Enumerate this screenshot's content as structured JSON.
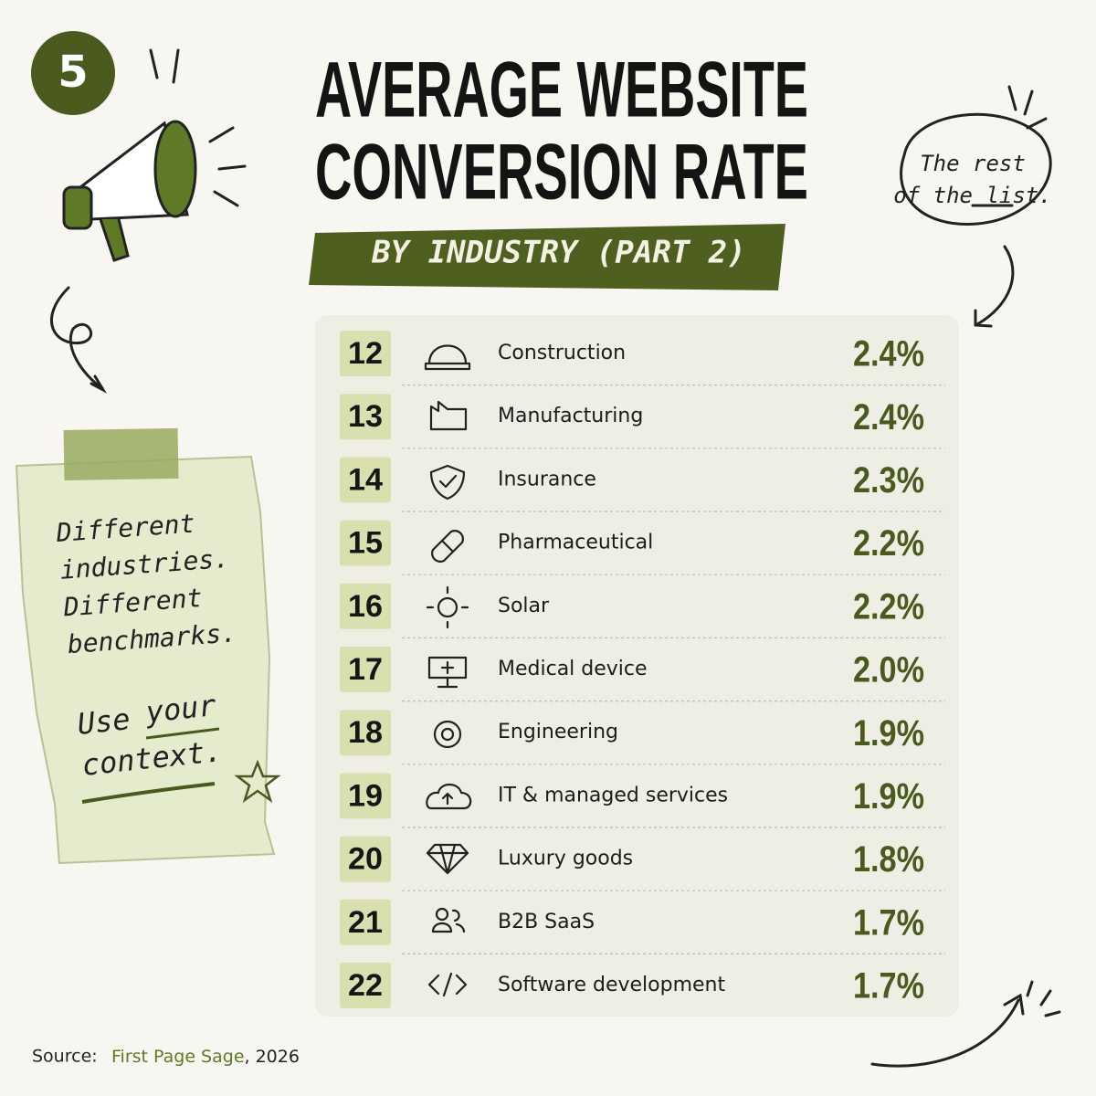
{
  "badge": "5",
  "header": {
    "title_lines": [
      "AVERAGE WEBSITE",
      "CONVERSION RATE"
    ],
    "subtitle": "BY INDUSTRY (PART 2)"
  },
  "bubble": {
    "lines": [
      "The rest",
      "of the list."
    ]
  },
  "note": {
    "lines": [
      "Different",
      "industries.",
      "Different",
      "benchmarks."
    ],
    "call": [
      "Use",
      "your",
      "context."
    ]
  },
  "table": {
    "rows": [
      [
        "12",
        "Construction",
        "2.4%"
      ],
      [
        "13",
        "Manufacturing",
        "2.4%"
      ],
      [
        "14",
        "Insurance",
        "2.3%"
      ],
      [
        "15",
        "Pharmaceutical",
        "2.2%"
      ],
      [
        "16",
        "Solar",
        "2.2%"
      ],
      [
        "17",
        "Medical device",
        "2.0%"
      ],
      [
        "18",
        "Engineering",
        "1.9%"
      ],
      [
        "19",
        "IT & managed services",
        "1.9%"
      ],
      [
        "20",
        "Luxury goods",
        "1.8%"
      ],
      [
        "21",
        "B2B SaaS",
        "1.7%"
      ],
      [
        "22",
        "Software development",
        "1.7%"
      ]
    ]
  },
  "source": {
    "label": "Source:",
    "name": "First Page Sage",
    "rest": ", 2026"
  }
}
